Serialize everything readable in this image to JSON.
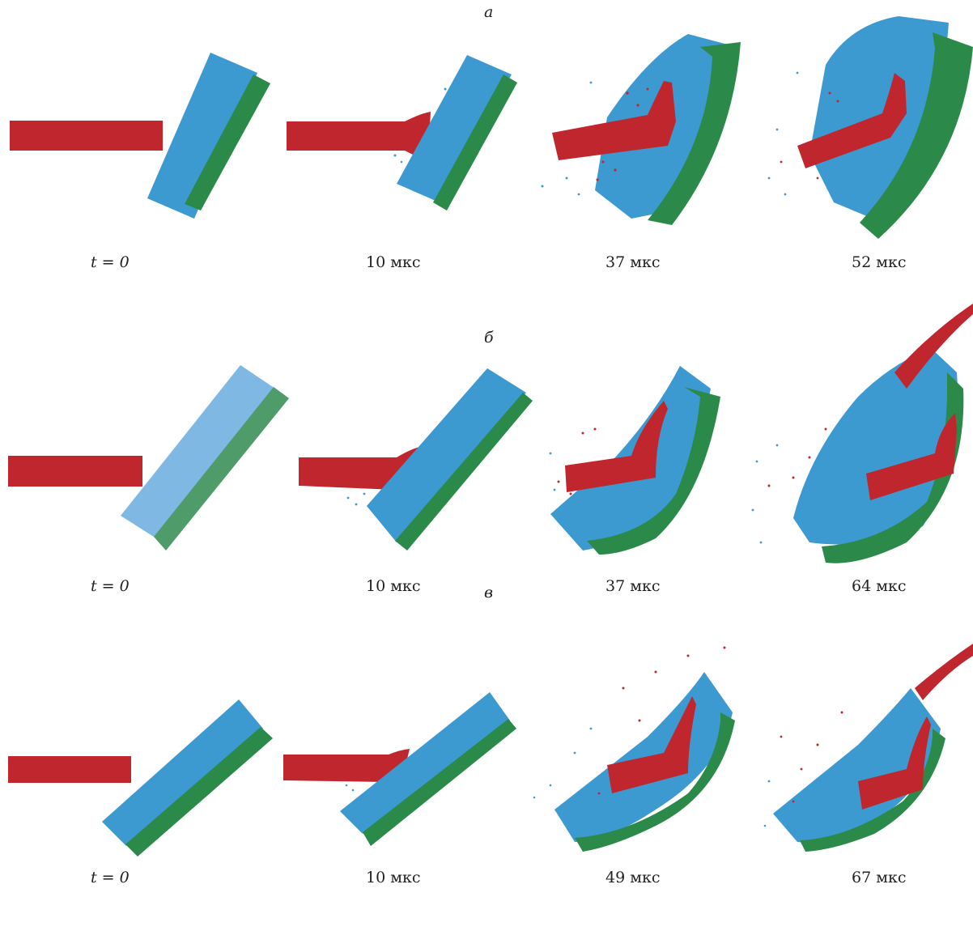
{
  "colors": {
    "projectile": "#c0262d",
    "front_layer": "#3d9ad1",
    "back_layer": "#2b8a49"
  },
  "rows": [
    {
      "title": "а",
      "captions": [
        "t = 0",
        "10 мкс",
        "37 мкс",
        "52 мкс"
      ]
    },
    {
      "title": "б",
      "captions": [
        "t = 0",
        "10 мкс",
        "37 мкс",
        "64 мкс"
      ]
    },
    {
      "title": "в",
      "captions": [
        "t = 0",
        "10 мкс",
        "49 мкс",
        "67 мкс"
      ]
    }
  ]
}
